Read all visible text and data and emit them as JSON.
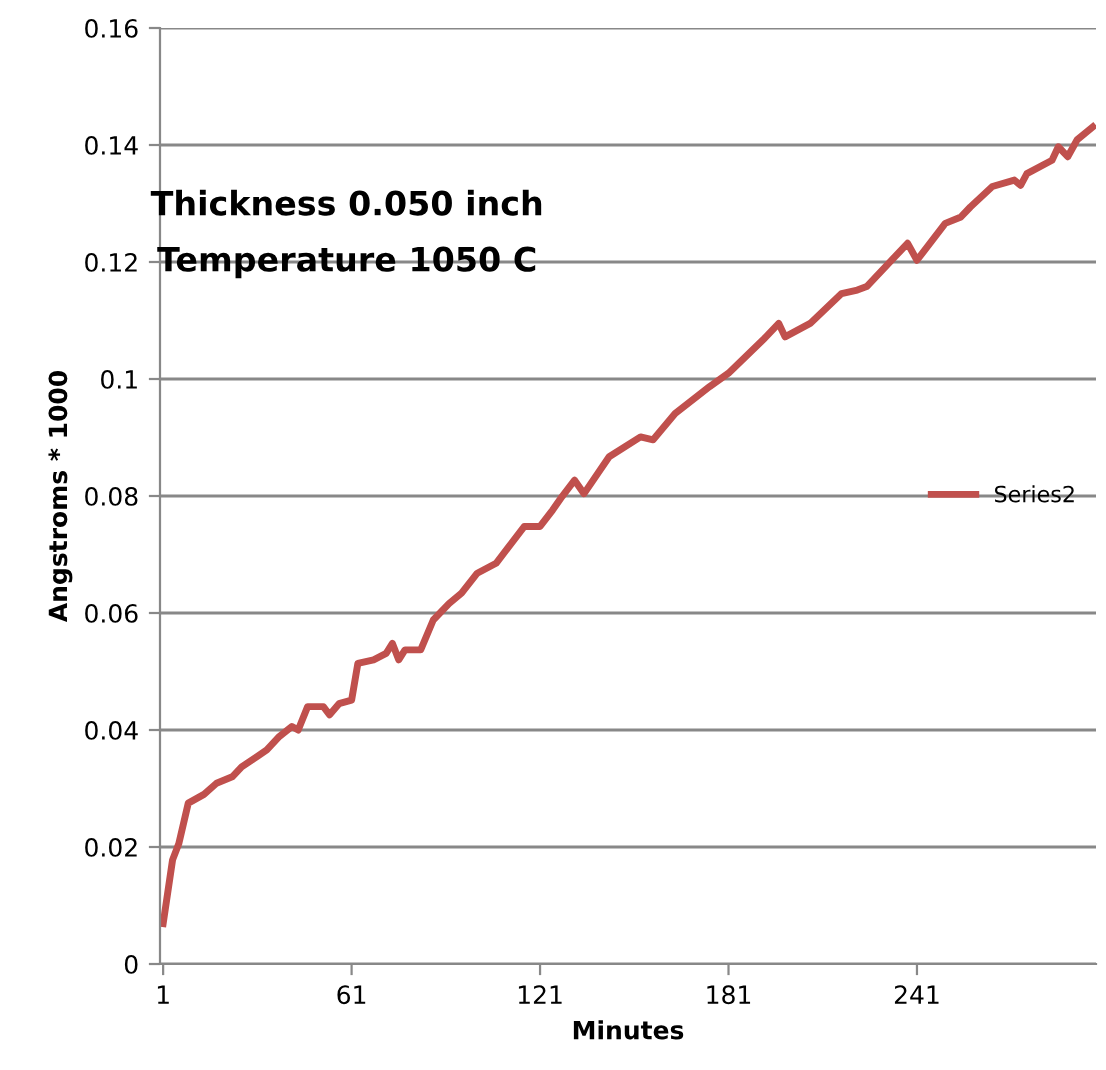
{
  "chart_data": {
    "type": "line",
    "xlabel": "Minutes",
    "ylabel": "Angstroms * 1000",
    "annotations": [
      "Thickness 0.050 inch",
      "Temperature 1050 C"
    ],
    "x": [
      1,
      4,
      6,
      9,
      14,
      18,
      23,
      26,
      31,
      34,
      38,
      42,
      44,
      47,
      52,
      54,
      57,
      61,
      63,
      68,
      72,
      74,
      76,
      78,
      83,
      87,
      92,
      96,
      101,
      107,
      111,
      116,
      121,
      125,
      128,
      132,
      135,
      143,
      153,
      157,
      164,
      175,
      181,
      192,
      197,
      199,
      207,
      217,
      222,
      225,
      234,
      238,
      241,
      250,
      255,
      258,
      265,
      272,
      274,
      276,
      284,
      286,
      289,
      292,
      297
    ],
    "series": [
      {
        "name": "Series2",
        "color": "#c0504d",
        "values": [
          0.0069,
          0.0178,
          0.0206,
          0.0275,
          0.029,
          0.0309,
          0.032,
          0.0337,
          0.0355,
          0.0366,
          0.0389,
          0.0406,
          0.04,
          0.044,
          0.044,
          0.0426,
          0.0445,
          0.0451,
          0.0514,
          0.052,
          0.0531,
          0.0548,
          0.052,
          0.0537,
          0.0537,
          0.0588,
          0.0616,
          0.0634,
          0.0668,
          0.0685,
          0.0713,
          0.0748,
          0.0748,
          0.0776,
          0.0799,
          0.0827,
          0.0804,
          0.0867,
          0.0901,
          0.0896,
          0.0941,
          0.0987,
          0.101,
          0.1067,
          0.1095,
          0.1072,
          0.1095,
          0.1146,
          0.1152,
          0.1158,
          0.1209,
          0.1232,
          0.1203,
          0.1266,
          0.1277,
          0.1294,
          0.1329,
          0.134,
          0.1331,
          0.1351,
          0.1374,
          0.1397,
          0.138,
          0.1409,
          0.1431
        ]
      }
    ],
    "xlim": [
      0,
      298
    ],
    "xticks": [
      1,
      61,
      121,
      181,
      241
    ],
    "ylim": [
      0,
      0.16
    ],
    "yticks": [
      0,
      0.02,
      0.04,
      0.06,
      0.08,
      0.1,
      0.12,
      0.14,
      0.16
    ],
    "grid": "y",
    "legend": "center right",
    "marker": "none",
    "line_style": "solid"
  }
}
